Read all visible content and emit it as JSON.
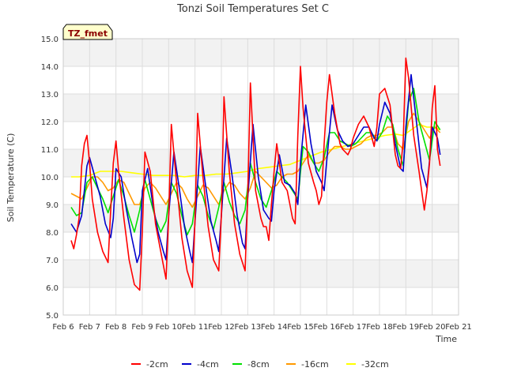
{
  "chart_data": {
    "type": "line",
    "title": "Tonzi Soil Temperatures Set C",
    "xlabel": "Time",
    "ylabel": "Soil Temperature (C)",
    "ylim": [
      5.0,
      15.0
    ],
    "xlim": [
      6,
      21
    ],
    "y_ticks": [
      "5.0",
      "6.0",
      "7.0",
      "8.0",
      "9.0",
      "10.0",
      "11.0",
      "12.0",
      "13.0",
      "14.0",
      "15.0"
    ],
    "x_ticks": [
      "Feb 6",
      "Feb 7",
      "Feb 8",
      "Feb 9",
      "Feb 10",
      "Feb 11",
      "Feb 12",
      "Feb 13",
      "Feb 14",
      "Feb 15",
      "Feb 16",
      "Feb 17",
      "Feb 18",
      "Feb 19",
      "Feb 20",
      "Feb 21"
    ],
    "grid": true,
    "legend_position": "bottom",
    "annotation": {
      "text": "TZ_fmet",
      "background": "#ffffcc",
      "border": "#000000",
      "color": "#8b0000"
    },
    "series": [
      {
        "name": "-2cm",
        "color": "#ff0000",
        "x": [
          6.3,
          6.4,
          6.5,
          6.6,
          6.7,
          6.8,
          6.9,
          7.0,
          7.1,
          7.3,
          7.5,
          7.7,
          7.8,
          7.9,
          8.0,
          8.1,
          8.3,
          8.5,
          8.7,
          8.9,
          9.0,
          9.1,
          9.3,
          9.5,
          9.7,
          9.9,
          10.0,
          10.1,
          10.3,
          10.5,
          10.7,
          10.9,
          11.0,
          11.1,
          11.3,
          11.5,
          11.7,
          11.9,
          12.0,
          12.1,
          12.3,
          12.5,
          12.7,
          12.9,
          13.0,
          13.1,
          13.3,
          13.5,
          13.6,
          13.7,
          13.8,
          13.9,
          14.0,
          14.1,
          14.3,
          14.5,
          14.6,
          14.7,
          14.8,
          14.9,
          15.0,
          15.1,
          15.3,
          15.5,
          15.6,
          15.7,
          15.8,
          15.9,
          16.0,
          16.1,
          16.3,
          16.5,
          16.6,
          16.7,
          16.8,
          16.9,
          17.0,
          17.2,
          17.4,
          17.6,
          17.8,
          17.9,
          18.0,
          18.2,
          18.4,
          18.6,
          18.7,
          18.8,
          18.9,
          19.0,
          19.1,
          19.3,
          19.5,
          19.6,
          19.7,
          19.8,
          19.9,
          20.0,
          20.1,
          20.2,
          20.3
        ],
        "y": [
          7.7,
          7.4,
          7.9,
          8.5,
          10.4,
          11.2,
          11.5,
          10.5,
          9.2,
          8.0,
          7.3,
          6.9,
          8.8,
          10.5,
          11.3,
          10.2,
          8.5,
          7.0,
          6.1,
          5.9,
          8.0,
          10.9,
          10.2,
          8.3,
          7.3,
          6.3,
          8.5,
          11.9,
          9.8,
          7.8,
          6.6,
          6.0,
          8.5,
          12.3,
          10.0,
          8.2,
          7.0,
          6.6,
          8.6,
          12.9,
          10.2,
          8.3,
          7.2,
          6.6,
          9.3,
          13.4,
          9.5,
          8.5,
          8.2,
          8.2,
          7.7,
          9.0,
          10.2,
          11.2,
          9.8,
          9.5,
          9.0,
          8.5,
          8.3,
          11.5,
          14.0,
          12.5,
          10.5,
          9.8,
          9.5,
          9.0,
          9.3,
          11.2,
          12.7,
          13.7,
          12.3,
          11.2,
          11.0,
          10.9,
          10.8,
          11.0,
          11.4,
          11.9,
          12.2,
          11.8,
          11.1,
          11.8,
          13.0,
          13.2,
          12.6,
          10.8,
          10.4,
          10.3,
          11.3,
          14.3,
          13.6,
          11.5,
          10.2,
          9.5,
          8.8,
          9.5,
          10.5,
          12.5,
          13.3,
          11.0,
          10.4
        ]
      },
      {
        "name": "-4cm",
        "color": "#0000cc",
        "x": [
          6.3,
          6.5,
          6.7,
          6.9,
          7.0,
          7.2,
          7.4,
          7.6,
          7.8,
          7.9,
          8.0,
          8.2,
          8.4,
          8.6,
          8.8,
          8.9,
          9.0,
          9.2,
          9.4,
          9.6,
          9.8,
          9.9,
          10.0,
          10.2,
          10.4,
          10.6,
          10.8,
          10.9,
          11.0,
          11.2,
          11.4,
          11.6,
          11.8,
          11.9,
          12.0,
          12.2,
          12.4,
          12.6,
          12.8,
          12.9,
          13.0,
          13.2,
          13.4,
          13.6,
          13.8,
          13.9,
          14.0,
          14.2,
          14.4,
          14.6,
          14.8,
          14.9,
          15.0,
          15.2,
          15.4,
          15.6,
          15.8,
          15.9,
          16.0,
          16.2,
          16.4,
          16.6,
          16.8,
          17.0,
          17.2,
          17.4,
          17.6,
          17.8,
          17.9,
          18.0,
          18.2,
          18.4,
          18.6,
          18.8,
          18.9,
          19.0,
          19.2,
          19.4,
          19.6,
          19.8,
          19.9,
          20.0,
          20.2,
          20.3
        ],
        "y": [
          8.3,
          8.0,
          8.6,
          10.4,
          10.7,
          10.0,
          9.3,
          8.3,
          7.8,
          8.5,
          10.3,
          10.0,
          8.8,
          7.8,
          6.9,
          7.2,
          9.5,
          10.3,
          9.0,
          8.0,
          7.3,
          7.0,
          8.6,
          10.9,
          9.6,
          8.2,
          7.3,
          6.9,
          8.4,
          11.1,
          9.7,
          8.4,
          7.7,
          7.3,
          8.6,
          11.4,
          10.1,
          8.6,
          7.6,
          7.4,
          9.2,
          11.9,
          10.0,
          8.8,
          8.5,
          8.4,
          9.5,
          10.8,
          9.8,
          9.7,
          9.4,
          9.0,
          10.5,
          12.6,
          11.2,
          10.2,
          9.8,
          9.5,
          10.6,
          12.6,
          11.7,
          11.3,
          11.1,
          11.2,
          11.5,
          11.8,
          11.8,
          11.4,
          11.3,
          11.9,
          12.7,
          12.3,
          11.2,
          10.3,
          10.2,
          11.8,
          13.7,
          12.0,
          10.3,
          9.6,
          10.6,
          11.8,
          11.4,
          10.8
        ]
      },
      {
        "name": "-8cm",
        "color": "#00e000",
        "x": [
          6.3,
          6.5,
          6.7,
          6.9,
          7.1,
          7.3,
          7.5,
          7.7,
          7.9,
          8.1,
          8.3,
          8.5,
          8.7,
          8.9,
          9.1,
          9.3,
          9.5,
          9.7,
          9.9,
          10.1,
          10.3,
          10.5,
          10.7,
          10.9,
          11.1,
          11.3,
          11.5,
          11.7,
          11.9,
          12.1,
          12.3,
          12.5,
          12.7,
          12.9,
          13.1,
          13.3,
          13.5,
          13.7,
          13.9,
          14.1,
          14.3,
          14.5,
          14.7,
          14.9,
          15.1,
          15.3,
          15.5,
          15.7,
          15.9,
          16.1,
          16.3,
          16.5,
          16.7,
          16.9,
          17.1,
          17.3,
          17.5,
          17.7,
          17.9,
          18.1,
          18.3,
          18.5,
          18.7,
          18.9,
          19.1,
          19.3,
          19.5,
          19.7,
          19.9,
          20.1,
          20.3
        ],
        "y": [
          8.9,
          8.6,
          8.7,
          9.8,
          10.0,
          9.6,
          9.2,
          8.7,
          9.3,
          9.9,
          9.3,
          8.6,
          8.0,
          8.8,
          9.9,
          9.2,
          8.5,
          8.0,
          8.4,
          9.8,
          9.4,
          8.6,
          7.9,
          8.3,
          9.7,
          9.3,
          8.6,
          8.1,
          8.9,
          9.8,
          9.1,
          8.6,
          8.3,
          8.8,
          10.5,
          9.8,
          9.2,
          8.9,
          9.5,
          10.2,
          10.0,
          9.8,
          9.5,
          9.2,
          11.1,
          10.9,
          10.5,
          10.2,
          10.7,
          11.6,
          11.6,
          11.3,
          11.2,
          11.1,
          11.2,
          11.4,
          11.6,
          11.6,
          11.3,
          11.6,
          12.2,
          11.9,
          11.0,
          10.4,
          12.7,
          13.2,
          12.0,
          11.3,
          10.6,
          12.0,
          11.7
        ]
      },
      {
        "name": "-16cm",
        "color": "#ff9900",
        "x": [
          6.3,
          6.5,
          6.7,
          6.9,
          7.1,
          7.3,
          7.5,
          7.7,
          7.9,
          8.1,
          8.3,
          8.5,
          8.7,
          8.9,
          9.1,
          9.3,
          9.5,
          9.7,
          9.9,
          10.1,
          10.3,
          10.5,
          10.7,
          10.9,
          11.1,
          11.3,
          11.5,
          11.7,
          11.9,
          12.1,
          12.3,
          12.5,
          12.7,
          12.9,
          13.1,
          13.3,
          13.5,
          13.7,
          13.9,
          14.1,
          14.3,
          14.5,
          14.7,
          14.9,
          15.1,
          15.3,
          15.5,
          15.7,
          15.9,
          16.1,
          16.3,
          16.5,
          16.7,
          16.9,
          17.1,
          17.3,
          17.5,
          17.7,
          17.9,
          18.1,
          18.3,
          18.5,
          18.7,
          18.9,
          19.1,
          19.3,
          19.5,
          19.7,
          19.9,
          20.1,
          20.3
        ],
        "y": [
          9.4,
          9.3,
          9.2,
          9.6,
          10.0,
          10.0,
          9.8,
          9.5,
          9.6,
          9.9,
          9.8,
          9.4,
          9.0,
          9.0,
          9.6,
          9.8,
          9.6,
          9.3,
          9.0,
          9.4,
          9.8,
          9.6,
          9.2,
          8.9,
          9.3,
          9.7,
          9.6,
          9.3,
          9.0,
          9.5,
          9.8,
          9.7,
          9.4,
          9.2,
          9.6,
          10.2,
          10.0,
          9.8,
          9.6,
          9.7,
          10.0,
          10.1,
          10.1,
          10.2,
          10.5,
          10.8,
          10.5,
          10.5,
          10.6,
          10.9,
          11.1,
          11.1,
          11.0,
          11.0,
          11.1,
          11.2,
          11.4,
          11.5,
          11.5,
          11.6,
          11.8,
          11.8,
          11.2,
          11.0,
          12.0,
          12.3,
          12.0,
          11.7,
          11.4,
          11.8,
          11.6
        ]
      },
      {
        "name": "-32cm",
        "color": "#ffff00",
        "x": [
          6.3,
          6.6,
          7.0,
          7.4,
          7.8,
          8.2,
          8.6,
          9.0,
          9.4,
          9.8,
          10.2,
          10.6,
          11.0,
          11.4,
          11.8,
          12.2,
          12.6,
          13.0,
          13.4,
          13.8,
          14.2,
          14.6,
          15.0,
          15.4,
          15.8,
          16.2,
          16.6,
          17.0,
          17.4,
          17.8,
          18.2,
          18.6,
          18.9,
          19.2,
          19.5,
          19.8,
          20.1,
          20.3
        ],
        "y": [
          10.0,
          10.0,
          10.05,
          10.2,
          10.2,
          10.2,
          10.15,
          10.1,
          10.05,
          10.05,
          10.05,
          10.0,
          10.05,
          10.05,
          10.1,
          10.1,
          10.15,
          10.2,
          10.3,
          10.35,
          10.4,
          10.45,
          10.6,
          10.75,
          10.9,
          11.0,
          11.1,
          11.2,
          11.3,
          11.4,
          11.5,
          11.55,
          11.5,
          11.7,
          11.9,
          11.8,
          11.8,
          11.7
        ]
      }
    ]
  }
}
